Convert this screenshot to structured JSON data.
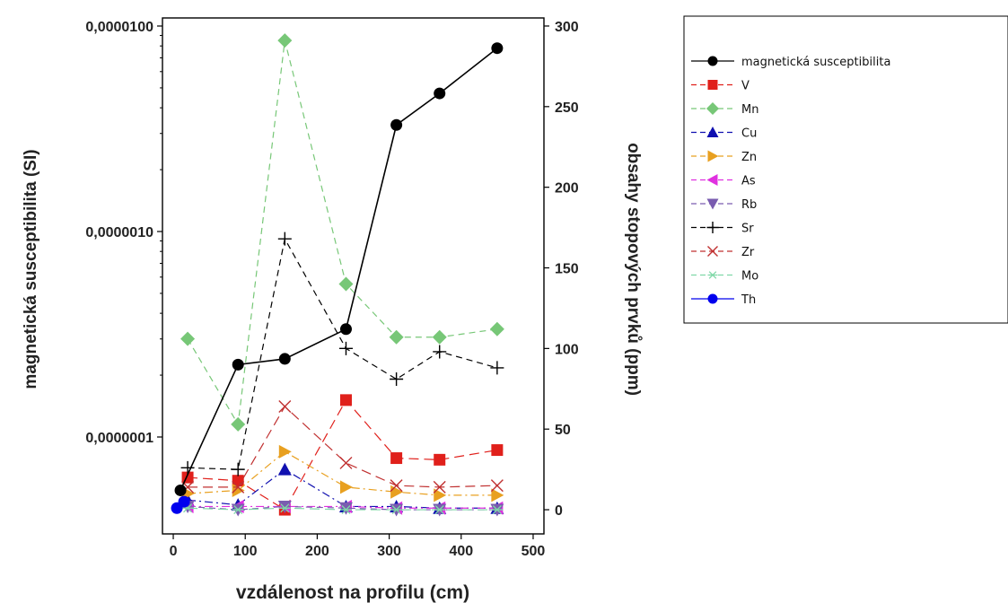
{
  "chart_data": {
    "type": "line",
    "xlabel": "vzdálenost na profilu (cm)",
    "ylabel_left": "magnetická susceptibilita (SI)",
    "ylabel_right": "obsahy stopových prvků (ppm)",
    "x_ticks": [
      "0",
      "100",
      "200",
      "300",
      "400",
      "500"
    ],
    "xlim": [
      -15,
      515
    ],
    "y_left_scale": "log",
    "y_left_ticks": [
      "0,0000001",
      "0,0000010",
      "0,0000100"
    ],
    "y_left_tick_values": [
      1e-07,
      1e-06,
      1e-05
    ],
    "ylim_right": [
      -15,
      305
    ],
    "y_right_ticks": [
      "0",
      "50",
      "100",
      "150",
      "200",
      "250",
      "300"
    ],
    "grid": false,
    "legend_position": "right",
    "series": [
      {
        "name": "magnetická susceptibilita",
        "axis": "left",
        "color": "#000000",
        "dash": "solid",
        "marker": "circle",
        "x": [
          10,
          90,
          155,
          240,
          310,
          370,
          450
        ],
        "y": [
          5.5e-08,
          2.25e-07,
          2.4e-07,
          3.35e-07,
          3.3e-06,
          4.7e-06,
          7.8e-06
        ]
      },
      {
        "name": "V",
        "axis": "right",
        "color": "#e0201b",
        "dash": "long",
        "marker": "square",
        "x": [
          20,
          90,
          155,
          240,
          310,
          370,
          450
        ],
        "y": [
          20,
          18,
          0,
          68,
          32,
          31,
          37
        ]
      },
      {
        "name": "Mn",
        "axis": "right",
        "color": "#77c777",
        "dash": "dash",
        "marker": "diamond",
        "x": [
          20,
          90,
          155,
          240,
          310,
          370,
          450
        ],
        "y": [
          106,
          53,
          291,
          140,
          107,
          107,
          112
        ]
      },
      {
        "name": "Cu",
        "axis": "right",
        "color": "#1010b0",
        "dash": "dashdot",
        "marker": "triangle-up",
        "x": [
          20,
          90,
          155,
          240,
          310,
          370,
          450
        ],
        "y": [
          6,
          3,
          25,
          2,
          2,
          1,
          1
        ]
      },
      {
        "name": "Zn",
        "axis": "right",
        "color": "#e8a020",
        "dash": "dashdot",
        "marker": "triangle-right",
        "x": [
          20,
          90,
          155,
          240,
          310,
          370,
          450
        ],
        "y": [
          10,
          12,
          36,
          14,
          11,
          9,
          9
        ]
      },
      {
        "name": "As",
        "axis": "right",
        "color": "#e030e0",
        "dash": "dashdot",
        "marker": "triangle-left",
        "x": [
          20,
          90,
          155,
          240,
          310,
          370,
          450
        ],
        "y": [
          2,
          2,
          2,
          2,
          1,
          1,
          1
        ]
      },
      {
        "name": "Rb",
        "axis": "right",
        "color": "#7a5cb0",
        "dash": "dash",
        "marker": "triangle-down",
        "x": [
          20,
          90,
          155,
          240,
          310,
          370,
          450
        ],
        "y": [
          2,
          0,
          2,
          1,
          0,
          0,
          0
        ]
      },
      {
        "name": "Sr",
        "axis": "right",
        "color": "#000000",
        "dash": "dash",
        "marker": "plus",
        "x": [
          20,
          90,
          155,
          240,
          310,
          370,
          450
        ],
        "y": [
          26,
          25,
          168,
          100,
          81,
          98,
          88
        ]
      },
      {
        "name": "Zr",
        "axis": "right",
        "color": "#c03030",
        "dash": "long",
        "marker": "x",
        "x": [
          20,
          90,
          155,
          240,
          310,
          370,
          450
        ],
        "y": [
          14,
          14,
          64,
          29,
          15,
          14,
          15
        ]
      },
      {
        "name": "Mo",
        "axis": "right",
        "color": "#80d8a8",
        "dash": "long",
        "marker": "asterisk",
        "x": [
          20,
          90,
          155,
          240,
          310,
          370,
          450
        ],
        "y": [
          1,
          0,
          1,
          0,
          0,
          0,
          0
        ]
      },
      {
        "name": "Th",
        "axis": "right",
        "color": "#0000ee",
        "dash": "solid",
        "marker": "circle",
        "x": [
          5,
          15
        ],
        "y": [
          1,
          5
        ]
      }
    ]
  }
}
